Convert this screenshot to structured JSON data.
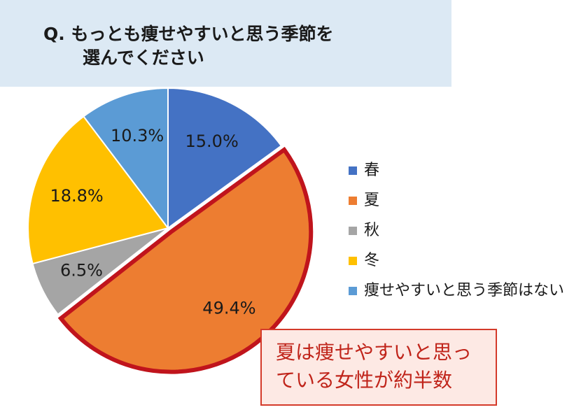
{
  "question": {
    "line1": "Q.  もっとも痩せやすいと思う季節を",
    "line2": "選んでください"
  },
  "chart_data": {
    "type": "pie",
    "categories": [
      "春",
      "夏",
      "秋",
      "冬",
      "痩せやすいと思う季節はない"
    ],
    "values": [
      15.0,
      49.4,
      6.5,
      18.8,
      10.3
    ],
    "value_labels": [
      "15.0%",
      "49.4%",
      "6.5%",
      "18.8%",
      "10.3%"
    ],
    "colors": [
      "#4472c4",
      "#ed7d31",
      "#a5a5a5",
      "#ffc000",
      "#5b9bd5"
    ],
    "highlighted_category": "夏",
    "highlight_color": "#c0141c",
    "legend_position": "right",
    "start": "12 o'clock",
    "direction": "clockwise"
  },
  "callout": {
    "line1": "夏は痩せやすいと思っ",
    "line2": "ている女性が約半数"
  }
}
